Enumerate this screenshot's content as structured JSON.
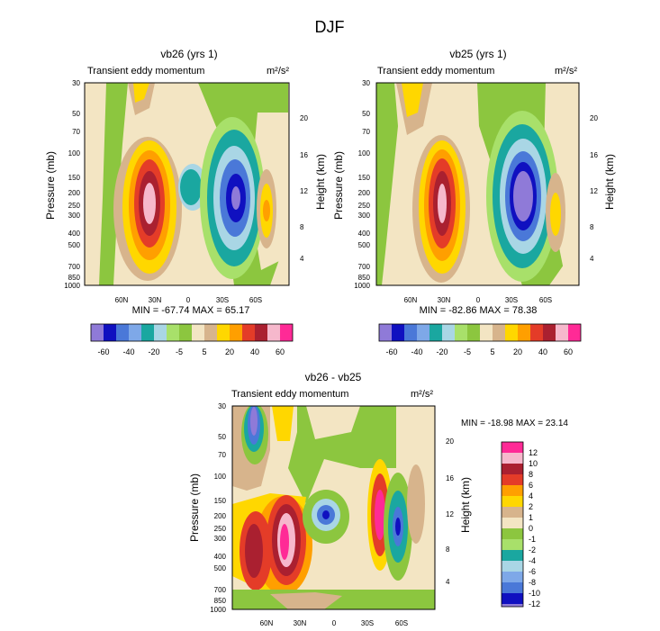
{
  "figure_title": "DJF",
  "colors": {
    "panel_bg": "#f3e5c3",
    "green": "#8cc63f",
    "tan": "#d7b48c",
    "teal": "#1aa7a0",
    "lightblue": "#a9d6e5",
    "blue": "#4a78d8",
    "navy": "#1010c0",
    "purple": "#8f7ad8",
    "yellow": "#ffd700",
    "orange": "#ff9f00",
    "red": "#e43c28",
    "darkred": "#aa2030",
    "pink": "#f6b8cc",
    "magenta": "#ff2a96"
  },
  "chart_data": [
    {
      "type": "heatmap",
      "panel": "top-left",
      "title": "vb26 (yrs 1)",
      "left_label": "Transient eddy momentum",
      "units_label": "m²/s²",
      "ylabel": "Pressure (mb)",
      "y2label": "Height (km)",
      "xticks": [
        "60N",
        "30N",
        "0",
        "30S",
        "60S"
      ],
      "yticks": [
        "30",
        "50",
        "70",
        "100",
        "150",
        "200",
        "250",
        "300",
        "400",
        "500",
        "700",
        "850",
        "1000"
      ],
      "y2ticks": [
        "20",
        "16",
        "12",
        "8",
        "4"
      ],
      "min_max_label": "MIN = -67.74   MAX =  65.17",
      "min": -67.74,
      "max": 65.17,
      "colorbar_labels": [
        "-60",
        "-40",
        "-20",
        "-5",
        "5",
        "20",
        "40",
        "60"
      ]
    },
    {
      "type": "heatmap",
      "panel": "top-right",
      "title": "vb25 (yrs 1)",
      "left_label": "Transient eddy momentum",
      "units_label": "m²/s²",
      "ylabel": "Pressure (mb)",
      "y2label": "Height (km)",
      "xticks": [
        "60N",
        "30N",
        "0",
        "30S",
        "60S"
      ],
      "yticks": [
        "30",
        "50",
        "70",
        "100",
        "150",
        "200",
        "250",
        "300",
        "400",
        "500",
        "700",
        "850",
        "1000"
      ],
      "y2ticks": [
        "20",
        "16",
        "12",
        "8",
        "4"
      ],
      "min_max_label": "MIN = -82.86   MAX =  78.38",
      "min": -82.86,
      "max": 78.38,
      "colorbar_labels": [
        "-60",
        "-40",
        "-20",
        "-5",
        "5",
        "20",
        "40",
        "60"
      ]
    },
    {
      "type": "heatmap",
      "panel": "bottom",
      "title": "vb26 - vb25",
      "left_label": "Transient eddy momentum",
      "units_label": "m²/s²",
      "ylabel": "Pressure (mb)",
      "y2label": "Height (km)",
      "xticks": [
        "60N",
        "30N",
        "0",
        "30S",
        "60S"
      ],
      "yticks": [
        "30",
        "50",
        "70",
        "100",
        "150",
        "200",
        "250",
        "300",
        "400",
        "500",
        "700",
        "850",
        "1000"
      ],
      "y2ticks": [
        "20",
        "16",
        "12",
        "8",
        "4"
      ],
      "min_max_label": "MIN = -18.98  MAX =  23.14",
      "min": -18.98,
      "max": 23.14,
      "colorbar_labels": [
        "12",
        "10",
        "8",
        "6",
        "4",
        "2",
        "1",
        "0",
        "-1",
        "-2",
        "-4",
        "-6",
        "-8",
        "-10",
        "-12"
      ]
    }
  ]
}
